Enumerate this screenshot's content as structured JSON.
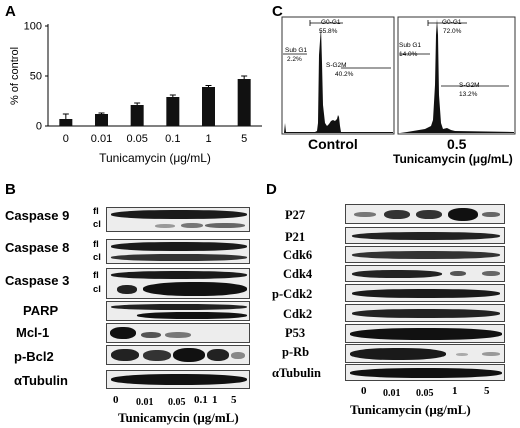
{
  "panels": {
    "a": "A",
    "b": "B",
    "c": "C",
    "d": "D"
  },
  "chart_data": {
    "type": "bar",
    "categories": [
      "0",
      "0.01",
      "0.05",
      "0.1",
      "1",
      "5"
    ],
    "values": [
      7,
      12,
      21,
      29,
      39,
      47
    ],
    "errors": [
      5,
      1,
      2,
      2,
      1.5,
      3
    ],
    "ylim": [
      0,
      100
    ],
    "yticks": [
      0,
      50,
      100
    ],
    "ylabel": "% of control",
    "xlabel": "Tunicamycin (μg/mL)",
    "bar_color": "#111111",
    "grid": false
  },
  "flow": {
    "control": {
      "caption": "Control",
      "subg1_label": "Sub G1",
      "subg1_value": "2.2%",
      "g0g1_label": "G0-G1",
      "g0g1_value": "55.8%",
      "sg2m_label": "S-G2M",
      "sg2m_value": "40.2%"
    },
    "treated": {
      "caption": "0.5",
      "caption_unit": "Tunicamycin (μg/mL)",
      "subg1_label": "Sub G1",
      "subg1_value": "14.0%",
      "g0g1_label": "G0-G1",
      "g0g1_value": "72.0%",
      "sg2m_label": "S-G2M",
      "sg2m_value": "13.2%"
    }
  },
  "blot_b": {
    "labels": [
      "Caspase 9",
      "Caspase 8",
      "Caspase 3",
      "PARP",
      "Mcl-1",
      "p-Bcl2",
      "αTubulin"
    ],
    "fl": "fl",
    "cl": "cl",
    "lanes": [
      "0",
      "0.01",
      "0.05",
      "0.1",
      "1",
      "5"
    ],
    "xlabel": "Tunicamycin (μg/mL)"
  },
  "blot_d": {
    "labels": [
      "P27",
      "P21",
      "Cdk6",
      "Cdk4",
      "p-Cdk2",
      "Cdk2",
      "P53",
      "p-Rb",
      "αTubulin"
    ],
    "lanes": [
      "0",
      "0.01",
      "0.05",
      "1",
      "5"
    ],
    "xlabel": "Tunicamycin (μg/mL)"
  }
}
